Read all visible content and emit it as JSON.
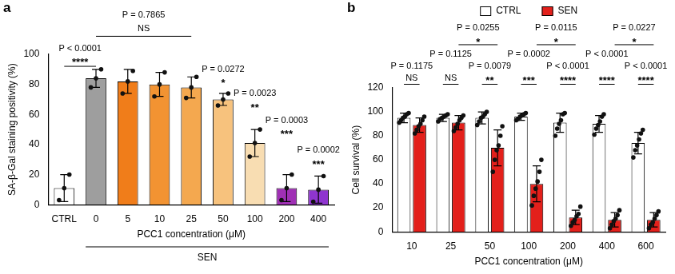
{
  "chart_data": [
    {
      "type": "bar",
      "title": "a",
      "categories": [
        "CTRL",
        "0",
        "5",
        "10",
        "25",
        "50",
        "100",
        "200",
        "400"
      ],
      "values": [
        11,
        84,
        82,
        80,
        78,
        70,
        41,
        11,
        10
      ],
      "errors": [
        9,
        6,
        8,
        8,
        7,
        4,
        9,
        9,
        9
      ],
      "points": [
        [
          3,
          11,
          20
        ],
        [
          78,
          84,
          90
        ],
        [
          74,
          82,
          89
        ],
        [
          72,
          80,
          88
        ],
        [
          71,
          78,
          85
        ],
        [
          66,
          70,
          74
        ],
        [
          32,
          41,
          50
        ],
        [
          3,
          11,
          20
        ],
        [
          2,
          10,
          19
        ]
      ],
      "colors": [
        "#ffffff",
        "#9e9e9e",
        "#f07d1a",
        "#f29332",
        "#f4a84f",
        "#f7c27d",
        "#f8ddb2",
        "#a030b5",
        "#8f35cf"
      ],
      "x_label": "PCC1 concentration (μM)",
      "y_label": "SA-β-Gal staining positivity (%)",
      "ylim": [
        0,
        100
      ],
      "yticks": [
        0,
        20,
        40,
        60,
        80,
        100
      ],
      "grid": false,
      "group": {
        "text": "SEN",
        "from": "0",
        "to": "400"
      },
      "brackets": [
        {
          "from": "CTRL",
          "to": "0",
          "y": 92
        },
        {
          "from": "0",
          "to": "25",
          "y": 112
        }
      ],
      "texts": [
        {
          "text": "****",
          "from": "CTRL",
          "to": "0",
          "y": 96
        },
        {
          "text": "P < 0.0001",
          "from": "CTRL",
          "to": "0",
          "y": 104
        },
        {
          "text": "NS",
          "from": "0",
          "to": "25",
          "y": 117
        },
        {
          "text": "P = 0.7865",
          "from": "0",
          "to": "25",
          "y": 126
        },
        {
          "text": "*",
          "from": "50",
          "y": 82
        },
        {
          "text": "P = 0.0272",
          "from": "50",
          "y": 90
        },
        {
          "text": "**",
          "from": "100",
          "y": 66
        },
        {
          "text": "P = 0.0023",
          "from": "100",
          "y": 74
        },
        {
          "text": "***",
          "from": "200",
          "y": 48
        },
        {
          "text": "P = 0.0003",
          "from": "200",
          "y": 56
        },
        {
          "text": "***",
          "from": "400",
          "y": 28
        },
        {
          "text": "P = 0.0002",
          "from": "400",
          "y": 36
        }
      ]
    },
    {
      "type": "bar",
      "title": "b",
      "categories": [
        "10",
        "25",
        "50",
        "100",
        "200",
        "400",
        "600"
      ],
      "series": [
        {
          "name": "CTRL",
          "color": "#ffffff",
          "values": [
            95,
            95,
            95,
            96,
            91,
            90,
            74
          ],
          "errors": [
            4,
            3,
            5,
            3,
            8,
            7,
            9
          ],
          "points": [
            [
              91,
              93,
              95,
              96,
              98,
              99
            ],
            [
              92,
              94,
              95,
              96,
              97,
              98
            ],
            [
              89,
              92,
              95,
              96,
              98,
              100
            ],
            [
              93,
              94,
              96,
              97,
              98,
              99
            ],
            [
              80,
              86,
              90,
              93,
              98,
              99
            ],
            [
              81,
              86,
              89,
              92,
              96,
              98
            ],
            [
              62,
              68,
              72,
              77,
              82,
              85
            ]
          ]
        },
        {
          "name": "SEN",
          "color": "#e3201b",
          "values": [
            89,
            91,
            70,
            40,
            12,
            10,
            10
          ],
          "errors": [
            6,
            6,
            15,
            15,
            6,
            6,
            6
          ],
          "points": [
            [
              82,
              85,
              88,
              90,
              93,
              96
            ],
            [
              84,
              87,
              90,
              93,
              95,
              97
            ],
            [
              50,
              60,
              68,
              72,
              80,
              88
            ],
            [
              22,
              30,
              36,
              42,
              50,
              60
            ],
            [
              5,
              8,
              10,
              13,
              15,
              21
            ],
            [
              3,
              6,
              9,
              11,
              14,
              18
            ],
            [
              3,
              6,
              8,
              11,
              14,
              17
            ]
          ]
        }
      ],
      "x_label": "PCC1 concentration (μM)",
      "y_label": "Cell survival (%)",
      "ylim": [
        0,
        120
      ],
      "yticks": [
        0,
        20,
        40,
        60,
        80,
        100,
        120
      ],
      "grid": false,
      "legend": "top",
      "brackets": [
        {
          "from": "10",
          "from_series": "CTRL",
          "to": "10",
          "to_series": "SEN",
          "y": 123
        },
        {
          "from": "25",
          "from_series": "CTRL",
          "to": "25",
          "to_series": "SEN",
          "y": 123
        },
        {
          "from": "50",
          "from_series": "CTRL",
          "to": "50",
          "to_series": "SEN",
          "y": 123
        },
        {
          "from": "100",
          "from_series": "CTRL",
          "to": "100",
          "to_series": "SEN",
          "y": 123
        },
        {
          "from": "200",
          "from_series": "CTRL",
          "to": "200",
          "to_series": "SEN",
          "y": 123
        },
        {
          "from": "400",
          "from_series": "CTRL",
          "to": "400",
          "to_series": "SEN",
          "y": 123
        },
        {
          "from": "600",
          "from_series": "CTRL",
          "to": "600",
          "to_series": "SEN",
          "y": 123
        },
        {
          "from": "25",
          "from_series": "SEN",
          "to": "50",
          "to_series": "SEN",
          "y": 156
        },
        {
          "from": "100",
          "from_series": "SEN",
          "to": "200",
          "to_series": "SEN",
          "y": 156
        },
        {
          "from": "400",
          "from_series": "SEN",
          "to": "600",
          "to_series": "SEN",
          "y": 156
        }
      ],
      "texts": [
        {
          "text": "NS",
          "from": "10",
          "from_series": "CTRL",
          "to": "10",
          "to_series": "SEN",
          "y": 128
        },
        {
          "text": "P = 0.1175",
          "from": "10",
          "from_series": "CTRL",
          "to": "10",
          "to_series": "SEN",
          "y": 138
        },
        {
          "text": "NS",
          "from": "25",
          "from_series": "CTRL",
          "to": "25",
          "to_series": "SEN",
          "y": 128
        },
        {
          "text": "P = 0.1125",
          "from": "25",
          "from_series": "CTRL",
          "to": "25",
          "to_series": "SEN",
          "y": 148
        },
        {
          "text": "**",
          "from": "50",
          "from_series": "CTRL",
          "to": "50",
          "to_series": "SEN",
          "y": 128
        },
        {
          "text": "P = 0.0079",
          "from": "50",
          "from_series": "CTRL",
          "to": "50",
          "to_series": "SEN",
          "y": 138
        },
        {
          "text": "***",
          "from": "100",
          "from_series": "CTRL",
          "to": "100",
          "to_series": "SEN",
          "y": 128
        },
        {
          "text": "P = 0.0002",
          "from": "100",
          "from_series": "CTRL",
          "to": "100",
          "to_series": "SEN",
          "y": 148
        },
        {
          "text": "****",
          "from": "200",
          "from_series": "CTRL",
          "to": "200",
          "to_series": "SEN",
          "y": 128
        },
        {
          "text": "P < 0.0001",
          "from": "200",
          "from_series": "CTRL",
          "to": "200",
          "to_series": "SEN",
          "y": 138
        },
        {
          "text": "****",
          "from": "400",
          "from_series": "CTRL",
          "to": "400",
          "to_series": "SEN",
          "y": 128
        },
        {
          "text": "P < 0.0001",
          "from": "400",
          "from_series": "CTRL",
          "to": "400",
          "to_series": "SEN",
          "y": 148
        },
        {
          "text": "****",
          "from": "600",
          "from_series": "CTRL",
          "to": "600",
          "to_series": "SEN",
          "y": 128
        },
        {
          "text": "P < 0.0001",
          "from": "600",
          "from_series": "CTRL",
          "to": "600",
          "to_series": "SEN",
          "y": 138
        },
        {
          "text": "*",
          "from": "25",
          "from_series": "SEN",
          "to": "50",
          "to_series": "SEN",
          "y": 160
        },
        {
          "text": "P = 0.0255",
          "from": "25",
          "from_series": "SEN",
          "to": "50",
          "to_series": "SEN",
          "y": 170
        },
        {
          "text": "*",
          "from": "100",
          "from_series": "SEN",
          "to": "200",
          "to_series": "SEN",
          "y": 160
        },
        {
          "text": "P = 0.0115",
          "from": "100",
          "from_series": "SEN",
          "to": "200",
          "to_series": "SEN",
          "y": 170
        },
        {
          "text": "*",
          "from": "400",
          "from_series": "SEN",
          "to": "600",
          "to_series": "SEN",
          "y": 160
        },
        {
          "text": "P = 0.0227",
          "from": "400",
          "from_series": "SEN",
          "to": "600",
          "to_series": "SEN",
          "y": 170
        }
      ]
    }
  ]
}
